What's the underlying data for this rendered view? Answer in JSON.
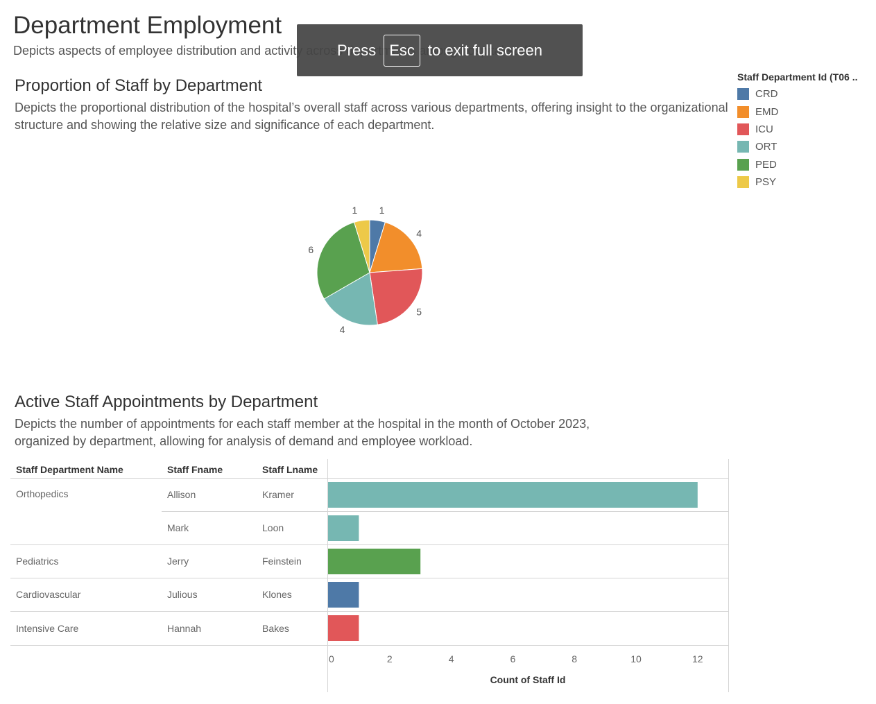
{
  "header": {
    "title": "Department Employment",
    "subtitle": "Depicts aspects of employee distribution and activity across departments among hospital staff."
  },
  "fullscreen_banner": {
    "press": "Press",
    "key": "Esc",
    "rest": "to exit full screen"
  },
  "proportion_section": {
    "title": "Proportion of Staff by Department",
    "description": "Depicts the proportional distribution of the hospital’s overall staff across various departments, offering insight to the organizational structure and showing the relative size and significance of each department."
  },
  "legend": {
    "title": "Staff Department Id (T06 ..",
    "items": [
      {
        "label": "CRD",
        "color": "#4e79a7"
      },
      {
        "label": "EMD",
        "color": "#f28e2b"
      },
      {
        "label": "ICU",
        "color": "#e15759"
      },
      {
        "label": "ORT",
        "color": "#76b7b2"
      },
      {
        "label": "PED",
        "color": "#59a14f"
      },
      {
        "label": "PSY",
        "color": "#edc948"
      }
    ]
  },
  "appointments_section": {
    "title": "Active Staff Appointments by Department",
    "description_line1": "Depicts the number of appointments for each staff member at the hospital in the month of October 2023,",
    "description_line2": "organized by department, allowing for analysis of demand and employee workload."
  },
  "table": {
    "headers": [
      "Staff Department Name",
      "Staff Fname",
      "Staff Lname"
    ],
    "rows": [
      {
        "dept": "Orthopedics",
        "fname": "Allison",
        "lname": "Kramer"
      },
      {
        "dept": "",
        "fname": "Mark",
        "lname": "Loon"
      },
      {
        "dept": "Pediatrics",
        "fname": "Jerry",
        "lname": "Feinstein"
      },
      {
        "dept": "Cardiovascular",
        "fname": "Julious",
        "lname": "Klones"
      },
      {
        "dept": "Intensive Care",
        "fname": "Hannah",
        "lname": "Bakes"
      }
    ]
  },
  "chart_data": [
    {
      "type": "pie",
      "title": "Proportion of Staff by Department",
      "categories": [
        "CRD",
        "EMD",
        "ICU",
        "ORT",
        "PED",
        "PSY"
      ],
      "values": [
        1,
        4,
        5,
        4,
        6,
        1
      ],
      "colors": [
        "#4e79a7",
        "#f28e2b",
        "#e15759",
        "#76b7b2",
        "#59a14f",
        "#edc948"
      ]
    },
    {
      "type": "bar",
      "title": "Active Staff Appointments by Department",
      "orientation": "horizontal",
      "categories": [
        "Orthopedics / Allison Kramer",
        "Orthopedics / Mark Loon",
        "Pediatrics / Jerry Feinstein",
        "Cardiovascular / Julious Klones",
        "Intensive Care / Hannah Bakes"
      ],
      "values": [
        12,
        1,
        3,
        1,
        1
      ],
      "colors": [
        "#76b7b2",
        "#76b7b2",
        "#59a14f",
        "#4e79a7",
        "#e15759"
      ],
      "xlabel": "Count of Staff Id",
      "xlim": [
        0,
        13
      ],
      "xticks": [
        0,
        2,
        4,
        6,
        8,
        10,
        12
      ],
      "grid": false
    }
  ]
}
